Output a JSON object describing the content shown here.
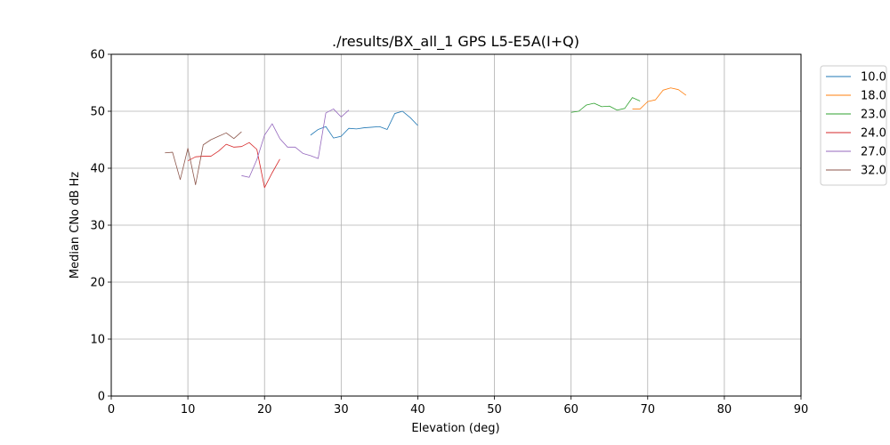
{
  "chart_data": {
    "type": "line",
    "title": "./results/BX_all_1 GPS L5-E5A(I+Q)",
    "xlabel": "Elevation (deg)",
    "ylabel": "Median CNo dB Hz",
    "xlim": [
      0,
      90
    ],
    "ylim": [
      0,
      60
    ],
    "xticks": [
      0,
      10,
      20,
      30,
      40,
      50,
      60,
      70,
      80,
      90
    ],
    "yticks": [
      0,
      10,
      20,
      30,
      40,
      50,
      60
    ],
    "grid": true,
    "legend_position": "right",
    "series": [
      {
        "name": "10.0",
        "color": "#1f77b4",
        "x": [
          26,
          27,
          28,
          29,
          30,
          31,
          32,
          33,
          34,
          35,
          36,
          37,
          38,
          39,
          40
        ],
        "y": [
          45.8,
          46.8,
          47.3,
          45.3,
          45.6,
          47.0,
          46.9,
          47.1,
          47.2,
          47.3,
          46.8,
          49.6,
          50.0,
          48.9,
          47.5
        ]
      },
      {
        "name": "18.0",
        "color": "#ff7f0e",
        "x": [
          68,
          69,
          70,
          71,
          72,
          73,
          74,
          75
        ],
        "y": [
          50.4,
          50.4,
          51.7,
          52.0,
          53.7,
          54.1,
          53.8,
          52.8
        ]
      },
      {
        "name": "23.0",
        "color": "#2ca02c",
        "x": [
          60,
          61,
          62,
          63,
          64,
          65,
          66,
          67,
          68,
          69
        ],
        "y": [
          49.8,
          50.0,
          51.1,
          51.4,
          50.8,
          50.9,
          50.2,
          50.5,
          52.4,
          51.8
        ]
      },
      {
        "name": "24.0",
        "color": "#d62728",
        "x": [
          10,
          11,
          12,
          13,
          14,
          15,
          16,
          17,
          18,
          19,
          20,
          21,
          22
        ],
        "y": [
          41.3,
          42.0,
          42.1,
          42.1,
          43.0,
          44.2,
          43.7,
          43.8,
          44.5,
          43.3,
          36.6,
          39.2,
          41.6
        ]
      },
      {
        "name": "27.0",
        "color": "#9467bd",
        "x": [
          17,
          18,
          19,
          20,
          21,
          22,
          23,
          24,
          25,
          26,
          27,
          28,
          29,
          30,
          31
        ],
        "y": [
          38.7,
          38.4,
          41.5,
          45.8,
          47.8,
          45.2,
          43.7,
          43.7,
          42.6,
          42.2,
          41.7,
          49.7,
          50.4,
          49.0,
          50.2
        ]
      },
      {
        "name": "32.0",
        "color": "#8c564b",
        "x": [
          7,
          8,
          9,
          10,
          11,
          12,
          13,
          14,
          15,
          16,
          17
        ],
        "y": [
          42.7,
          42.8,
          38.0,
          43.5,
          37.1,
          44.1,
          45.0,
          45.6,
          46.2,
          45.2,
          46.4
        ]
      }
    ]
  }
}
